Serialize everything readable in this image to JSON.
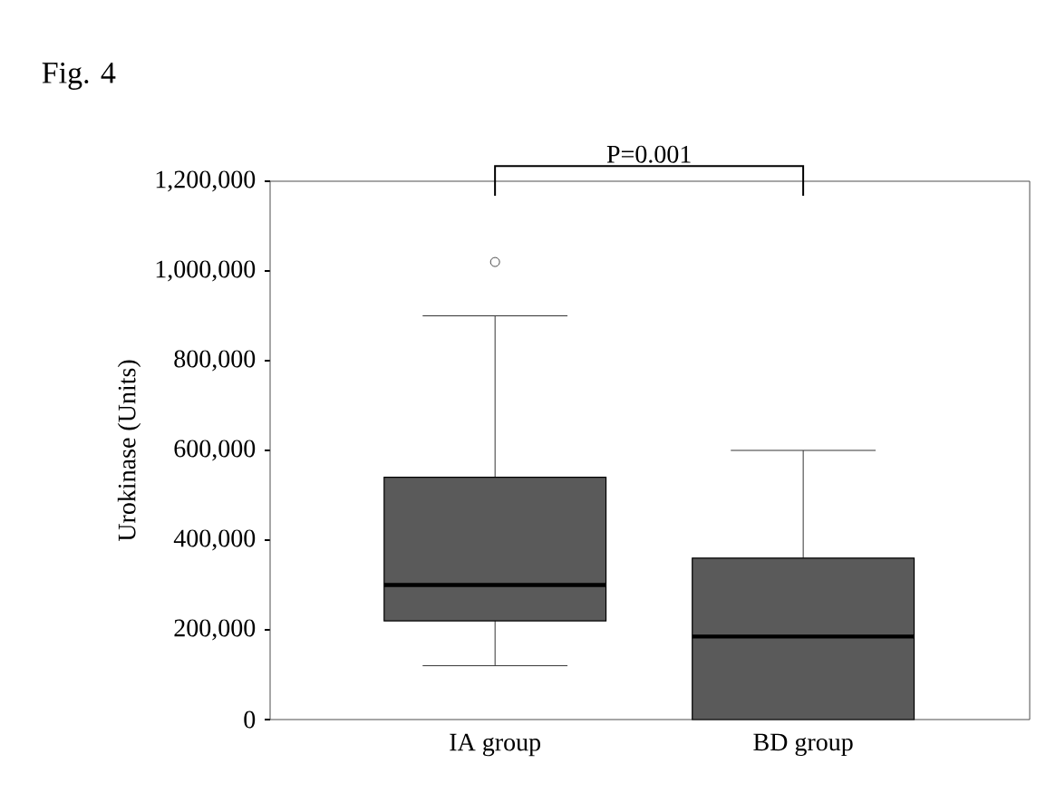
{
  "chart_data": {
    "type": "box",
    "title": "Fig. 4",
    "ylabel": "Urokinase (Units)",
    "categories": [
      "IA group",
      "BD group"
    ],
    "series": [
      {
        "color": "#5a5a5a",
        "boxes": [
          {
            "low": 120000,
            "q1": 220000,
            "median": 300000,
            "q3": 540000,
            "high": 900000,
            "outliers": [
              1020000
            ]
          },
          {
            "low": 0,
            "q1": 0,
            "median": 185000,
            "q3": 360000,
            "high": 600000
          }
        ]
      }
    ],
    "ylim": [
      0,
      1200000
    ],
    "yticks": [
      {
        "value": 0,
        "label": "0"
      },
      {
        "value": 200000,
        "label": "200,000"
      },
      {
        "value": 400000,
        "label": "400,000"
      },
      {
        "value": 600000,
        "label": "600,000"
      },
      {
        "value": 800000,
        "label": "800,000"
      },
      {
        "value": 1000000,
        "label": "1,000,000"
      },
      {
        "value": 1200000,
        "label": "1,200,000"
      }
    ],
    "annotations": [
      "P=0.001"
    ],
    "grid": false
  }
}
